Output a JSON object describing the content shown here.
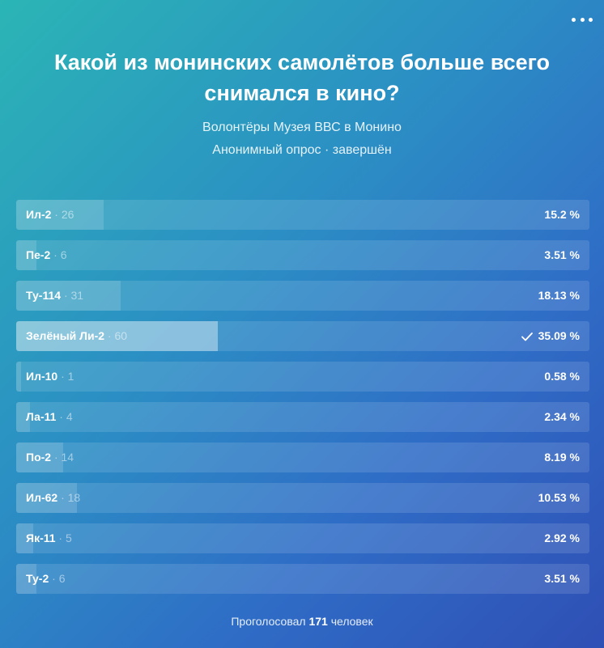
{
  "poll": {
    "title": "Какой из монинских самолётов больше всего снимался в кино?",
    "author": "Волонтёры Музея ВВС в Монино",
    "meta": "Анонимный опрос · завершён",
    "options": [
      {
        "label": "Ил-2",
        "count_text": " · 26",
        "votes": 26,
        "percent_value": 15.2,
        "percent": "15.2 %",
        "chosen": false
      },
      {
        "label": "Пе-2",
        "count_text": " · 6",
        "votes": 6,
        "percent_value": 3.51,
        "percent": "3.51 %",
        "chosen": false
      },
      {
        "label": "Ту-114",
        "count_text": " · 31",
        "votes": 31,
        "percent_value": 18.13,
        "percent": "18.13 %",
        "chosen": false
      },
      {
        "label": "Зелёный Ли-2",
        "count_text": " · 60",
        "votes": 60,
        "percent_value": 35.09,
        "percent": "35.09 %",
        "chosen": true
      },
      {
        "label": "Ил-10",
        "count_text": " · 1",
        "votes": 1,
        "percent_value": 0.58,
        "percent": "0.58 %",
        "chosen": false
      },
      {
        "label": "Ла-11",
        "count_text": " · 4",
        "votes": 4,
        "percent_value": 2.34,
        "percent": "2.34 %",
        "chosen": false
      },
      {
        "label": "По-2",
        "count_text": " · 14",
        "votes": 14,
        "percent_value": 8.19,
        "percent": "8.19 %",
        "chosen": false
      },
      {
        "label": "Ил-62",
        "count_text": " · 18",
        "votes": 18,
        "percent_value": 10.53,
        "percent": "10.53 %",
        "chosen": false
      },
      {
        "label": "Як-11",
        "count_text": " · 5",
        "votes": 5,
        "percent_value": 2.92,
        "percent": "2.92 %",
        "chosen": false
      },
      {
        "label": "Ту-2",
        "count_text": " · 6",
        "votes": 6,
        "percent_value": 3.51,
        "percent": "3.51 %",
        "chosen": false
      }
    ],
    "footer": {
      "prefix": "Проголосовал ",
      "total": "171",
      "suffix": " человек"
    }
  },
  "icons": {
    "more": "more-dots-icon",
    "check": "check-icon"
  },
  "colors": {
    "gradient_start": "#2bb5b5",
    "gradient_end": "#2f4fb5",
    "text": "#ffffff"
  }
}
